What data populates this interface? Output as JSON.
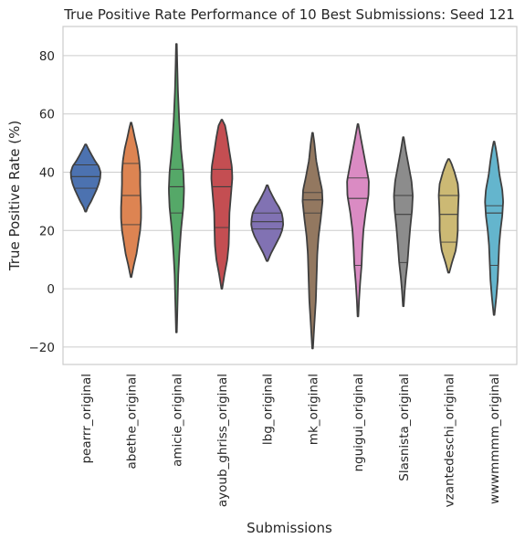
{
  "chart_data": {
    "type": "violin",
    "title": "True Positive Rate Performance of 10 Best Submissions: Seed 121",
    "xlabel": "Submissions",
    "ylabel": "True Positive Rate (%)",
    "ylim": [
      -26,
      90
    ],
    "yticks": [
      -20,
      0,
      20,
      40,
      60,
      80
    ],
    "grid": "horizontal",
    "inner": "quartile",
    "categories": [
      "pearrr_original",
      "abethe_original",
      "amicie_original",
      "ayoub_ghriss_original",
      "lbg_original",
      "mk_original",
      "nguigui_original",
      "Slasnista_original",
      "vzantedeschi_original",
      "wwwmmmm_original"
    ],
    "colors": [
      "#4c72b0",
      "#dd8452",
      "#55a868",
      "#c44e52",
      "#8172b3",
      "#937860",
      "#da8bc3",
      "#8c8c8c",
      "#ccb974",
      "#64b5cd"
    ],
    "series": [
      {
        "values": {
          "min": 26.5,
          "max": 49.5,
          "q1": 34.5,
          "median": 38.5,
          "q3": 42.5,
          "density": [
            [
              26.5,
              0.03
            ],
            [
              28,
              0.12
            ],
            [
              30,
              0.3
            ],
            [
              32,
              0.45
            ],
            [
              34,
              0.6
            ],
            [
              36,
              0.72
            ],
            [
              38,
              0.8
            ],
            [
              40,
              0.82
            ],
            [
              42,
              0.72
            ],
            [
              44,
              0.5
            ],
            [
              46,
              0.32
            ],
            [
              48,
              0.15
            ],
            [
              49.5,
              0.03
            ]
          ]
        }
      },
      {
        "values": {
          "min": 4,
          "max": 57,
          "q1": 22,
          "median": 32,
          "q3": 43,
          "density": [
            [
              4,
              0.02
            ],
            [
              8,
              0.15
            ],
            [
              12,
              0.3
            ],
            [
              16,
              0.4
            ],
            [
              20,
              0.5
            ],
            [
              24,
              0.55
            ],
            [
              28,
              0.55
            ],
            [
              32,
              0.52
            ],
            [
              36,
              0.5
            ],
            [
              40,
              0.5
            ],
            [
              44,
              0.45
            ],
            [
              48,
              0.35
            ],
            [
              52,
              0.2
            ],
            [
              55,
              0.1
            ],
            [
              57,
              0.02
            ]
          ]
        }
      },
      {
        "values": {
          "min": -15,
          "max": 84,
          "q1": 26,
          "median": 35,
          "q3": 41,
          "density": [
            [
              -15,
              0.02
            ],
            [
              -5,
              0.06
            ],
            [
              5,
              0.1
            ],
            [
              12,
              0.16
            ],
            [
              20,
              0.25
            ],
            [
              28,
              0.38
            ],
            [
              34,
              0.42
            ],
            [
              40,
              0.38
            ],
            [
              48,
              0.25
            ],
            [
              58,
              0.15
            ],
            [
              68,
              0.08
            ],
            [
              78,
              0.04
            ],
            [
              84,
              0.02
            ]
          ]
        }
      },
      {
        "values": {
          "min": 0,
          "max": 58,
          "q1": 21,
          "median": 35,
          "q3": 41,
          "density": [
            [
              0,
              0.02
            ],
            [
              5,
              0.15
            ],
            [
              10,
              0.3
            ],
            [
              15,
              0.38
            ],
            [
              20,
              0.4
            ],
            [
              26,
              0.42
            ],
            [
              32,
              0.5
            ],
            [
              38,
              0.58
            ],
            [
              42,
              0.55
            ],
            [
              47,
              0.42
            ],
            [
              52,
              0.3
            ],
            [
              56,
              0.18
            ],
            [
              58,
              0.02
            ]
          ]
        }
      },
      {
        "values": {
          "min": 9.5,
          "max": 35.5,
          "q1": 20.5,
          "median": 23,
          "q3": 26,
          "density": [
            [
              9.5,
              0.03
            ],
            [
              12,
              0.2
            ],
            [
              15,
              0.45
            ],
            [
              18,
              0.7
            ],
            [
              20,
              0.82
            ],
            [
              22,
              0.88
            ],
            [
              24,
              0.86
            ],
            [
              26,
              0.8
            ],
            [
              28,
              0.65
            ],
            [
              30,
              0.45
            ],
            [
              32,
              0.28
            ],
            [
              34,
              0.12
            ],
            [
              35.5,
              0.03
            ]
          ]
        }
      },
      {
        "values": {
          "min": -20.5,
          "max": 53.5,
          "q1": 26,
          "median": 30.5,
          "q3": 33,
          "density": [
            [
              -20.5,
              0.02
            ],
            [
              -12,
              0.1
            ],
            [
              -4,
              0.18
            ],
            [
              4,
              0.22
            ],
            [
              12,
              0.26
            ],
            [
              18,
              0.33
            ],
            [
              24,
              0.45
            ],
            [
              30,
              0.55
            ],
            [
              34,
              0.52
            ],
            [
              38,
              0.38
            ],
            [
              44,
              0.2
            ],
            [
              50,
              0.1
            ],
            [
              53.5,
              0.02
            ]
          ]
        }
      },
      {
        "values": {
          "min": -9.5,
          "max": 56.5,
          "q1": 8,
          "median": 31,
          "q3": 38,
          "density": [
            [
              -9.5,
              0.02
            ],
            [
              -4,
              0.06
            ],
            [
              2,
              0.12
            ],
            [
              8,
              0.2
            ],
            [
              14,
              0.24
            ],
            [
              20,
              0.3
            ],
            [
              26,
              0.42
            ],
            [
              32,
              0.58
            ],
            [
              37,
              0.6
            ],
            [
              42,
              0.45
            ],
            [
              47,
              0.3
            ],
            [
              52,
              0.15
            ],
            [
              56.5,
              0.02
            ]
          ]
        }
      },
      {
        "values": {
          "min": -6,
          "max": 52,
          "q1": 9,
          "median": 25.5,
          "q3": 32,
          "density": [
            [
              -6,
              0.02
            ],
            [
              -1,
              0.07
            ],
            [
              4,
              0.14
            ],
            [
              9,
              0.23
            ],
            [
              15,
              0.3
            ],
            [
              21,
              0.38
            ],
            [
              27,
              0.48
            ],
            [
              32,
              0.52
            ],
            [
              37,
              0.45
            ],
            [
              42,
              0.3
            ],
            [
              47,
              0.15
            ],
            [
              52,
              0.02
            ]
          ]
        }
      },
      {
        "values": {
          "min": 5.5,
          "max": 44.5,
          "q1": 16,
          "median": 25.5,
          "q3": 32,
          "density": [
            [
              5.5,
              0.03
            ],
            [
              9,
              0.18
            ],
            [
              13,
              0.38
            ],
            [
              16,
              0.45
            ],
            [
              20,
              0.5
            ],
            [
              24,
              0.5
            ],
            [
              28,
              0.52
            ],
            [
              32,
              0.55
            ],
            [
              36,
              0.5
            ],
            [
              40,
              0.32
            ],
            [
              43,
              0.15
            ],
            [
              44.5,
              0.03
            ]
          ]
        }
      },
      {
        "values": {
          "min": -9,
          "max": 50.5,
          "q1": 8,
          "median": 26,
          "q3": 28.5,
          "density": [
            [
              -9,
              0.02
            ],
            [
              -3,
              0.12
            ],
            [
              3,
              0.2
            ],
            [
              9,
              0.24
            ],
            [
              15,
              0.28
            ],
            [
              20,
              0.35
            ],
            [
              25,
              0.45
            ],
            [
              30,
              0.5
            ],
            [
              34,
              0.45
            ],
            [
              39,
              0.3
            ],
            [
              44,
              0.2
            ],
            [
              48,
              0.1
            ],
            [
              50.5,
              0.02
            ]
          ]
        }
      }
    ]
  }
}
